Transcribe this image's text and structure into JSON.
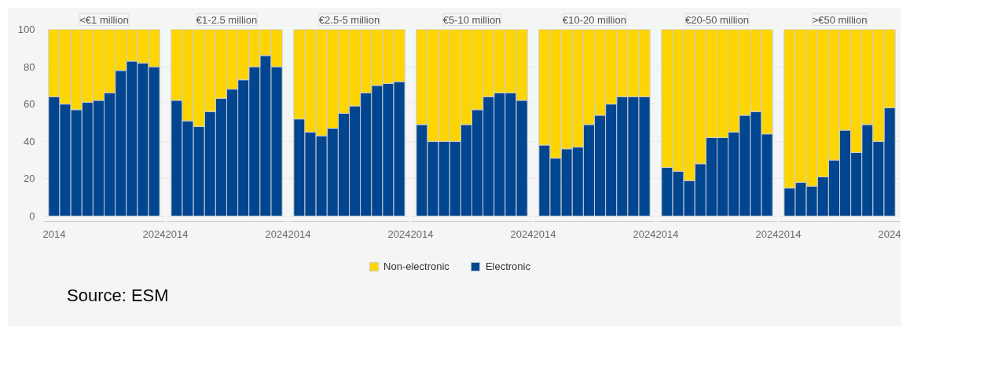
{
  "chart_data": [
    {
      "type": "bar",
      "title": "<€1 million",
      "stacked": true,
      "categories": [
        "2014",
        null,
        null,
        null,
        null,
        null,
        null,
        null,
        null,
        "2024"
      ],
      "ylim": [
        -3,
        100
      ],
      "yticks": [
        0,
        20,
        40,
        60,
        80,
        100
      ],
      "grid": "y",
      "annotations": [
        "Source: ESM"
      ],
      "series": [
        {
          "color": "#00458f",
          "values": [
            64,
            60,
            57,
            61,
            62,
            66,
            78,
            83,
            82,
            80
          ]
        },
        {
          "color": "#ffd500",
          "values": [
            36,
            40,
            43,
            39,
            38,
            34,
            22,
            17,
            18,
            20
          ]
        }
      ]
    },
    {
      "type": "bar",
      "title": "€1-2.5 million",
      "stacked": true,
      "categories": [
        "2014",
        null,
        null,
        null,
        null,
        null,
        null,
        null,
        null,
        "2024"
      ],
      "ylim": [
        -3,
        100
      ],
      "yticks": [
        0,
        20,
        40,
        60,
        80,
        100
      ],
      "tick_labels": "x",
      "grid": "y",
      "series": [
        {
          "color": "#00458f",
          "values": [
            62,
            51,
            48,
            56,
            63,
            68,
            73,
            80,
            86,
            80
          ]
        },
        {
          "color": "#ffd500",
          "values": [
            38,
            49,
            52,
            44,
            37,
            32,
            27,
            20,
            14,
            20
          ]
        }
      ]
    },
    {
      "type": "bar",
      "title": "€2.5-5 million",
      "stacked": true,
      "categories": [
        "2014",
        null,
        null,
        null,
        null,
        null,
        null,
        null,
        null,
        "2024"
      ],
      "ylim": [
        -3,
        100
      ],
      "yticks": [
        0,
        20,
        40,
        60,
        80,
        100
      ],
      "tick_labels": "x",
      "grid": "y",
      "series": [
        {
          "color": "#00458f",
          "values": [
            52,
            45,
            43,
            47,
            55,
            59,
            66,
            70,
            71,
            72
          ]
        },
        {
          "color": "#ffd500",
          "values": [
            48,
            55,
            57,
            53,
            45,
            41,
            34,
            30,
            29,
            28
          ]
        }
      ]
    },
    {
      "type": "bar",
      "title": "€5-10 million",
      "stacked": true,
      "categories": [
        "2014",
        null,
        null,
        null,
        null,
        null,
        null,
        null,
        null,
        "2024"
      ],
      "ylim": [
        -3,
        100
      ],
      "yticks": [
        0,
        20,
        40,
        60,
        80,
        100
      ],
      "tick_labels": "x",
      "grid": "y",
      "legend": "bottom",
      "series": [
        {
          "name": "Electronic",
          "color": "#00458f",
          "values": [
            49,
            40,
            40,
            40,
            49,
            57,
            64,
            66,
            66,
            62
          ]
        },
        {
          "name": "Non-electronic",
          "color": "#ffd500",
          "values": [
            51,
            60,
            60,
            60,
            51,
            43,
            36,
            34,
            34,
            38
          ]
        }
      ]
    },
    {
      "type": "bar",
      "title": "€10-20 million",
      "stacked": true,
      "categories": [
        "2014",
        null,
        null,
        null,
        null,
        null,
        null,
        null,
        null,
        "2024"
      ],
      "ylim": [
        -3,
        100
      ],
      "yticks": [
        0,
        20,
        40,
        60,
        80,
        100
      ],
      "tick_labels": "x",
      "grid": "y",
      "series": [
        {
          "color": "#00458f",
          "values": [
            38,
            31,
            36,
            37,
            49,
            54,
            60,
            64,
            64,
            64
          ]
        },
        {
          "color": "#ffd500",
          "values": [
            62,
            69,
            64,
            63,
            51,
            46,
            40,
            36,
            36,
            36
          ]
        }
      ]
    },
    {
      "type": "bar",
      "title": "€20-50 million",
      "stacked": true,
      "categories": [
        "2014",
        null,
        null,
        null,
        null,
        null,
        null,
        null,
        null,
        "2024"
      ],
      "ylim": [
        -3,
        100
      ],
      "yticks": [
        0,
        20,
        40,
        60,
        80,
        100
      ],
      "tick_labels": "x",
      "grid": "y",
      "series": [
        {
          "color": "#00458f",
          "values": [
            26,
            24,
            19,
            28,
            42,
            42,
            45,
            54,
            56,
            44
          ]
        },
        {
          "color": "#ffd500",
          "values": [
            74,
            76,
            81,
            72,
            58,
            58,
            55,
            46,
            44,
            56
          ]
        }
      ]
    },
    {
      "type": "bar",
      "title": ">€50 million",
      "stacked": true,
      "categories": [
        "2014",
        null,
        null,
        null,
        null,
        null,
        null,
        null,
        null,
        "2024"
      ],
      "ylim": [
        -3,
        100
      ],
      "yticks": [
        0,
        20,
        40,
        60,
        80,
        100
      ],
      "tick_labels": "x",
      "grid": "y",
      "series": [
        {
          "color": "#00458f",
          "values": [
            15,
            18,
            16,
            21,
            30,
            46,
            34,
            49,
            40,
            58
          ]
        },
        {
          "color": "#ffd500",
          "values": [
            85,
            82,
            84,
            79,
            70,
            54,
            66,
            51,
            60,
            42
          ]
        }
      ]
    }
  ]
}
